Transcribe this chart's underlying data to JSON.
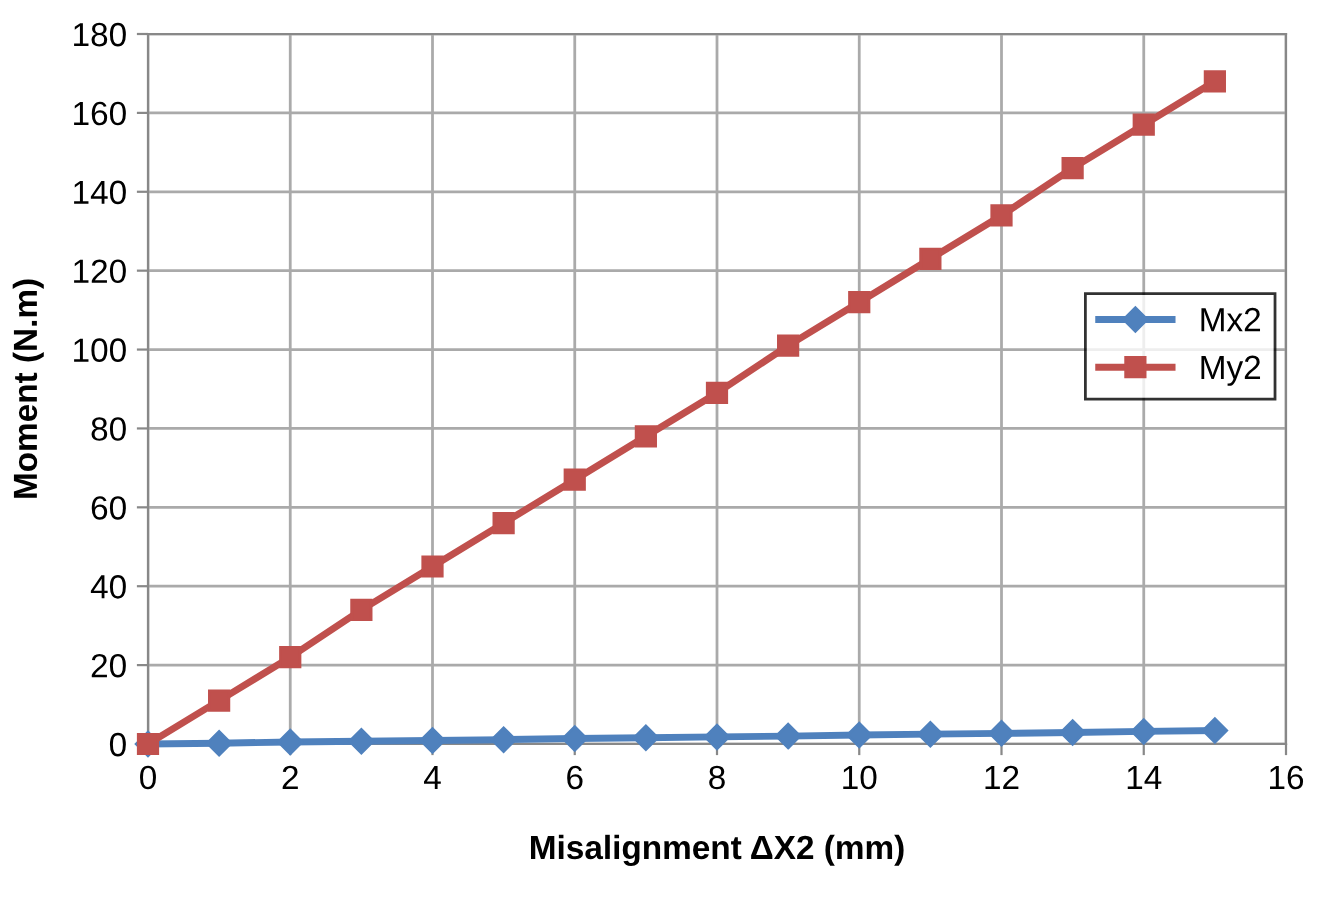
{
  "chart_data": {
    "type": "line",
    "xlabel": "Misalignment ΔX2 (mm)",
    "ylabel": "Moment (N.m)",
    "x": [
      0,
      1,
      2,
      3,
      4,
      5,
      6,
      7,
      8,
      9,
      10,
      11,
      12,
      13,
      14,
      15
    ],
    "series": [
      {
        "name": "Mx2",
        "color": "#4f81bd",
        "marker": "diamond",
        "values": [
          0,
          0.2,
          0.5,
          0.7,
          0.9,
          1.1,
          1.4,
          1.6,
          1.8,
          2.0,
          2.3,
          2.5,
          2.7,
          2.9,
          3.2,
          3.4
        ]
      },
      {
        "name": "My2",
        "color": "#c0504d",
        "marker": "square",
        "values": [
          0,
          11,
          22,
          34,
          45,
          56,
          67,
          78,
          89,
          101,
          112,
          123,
          134,
          146,
          157,
          168
        ]
      }
    ],
    "xlim": [
      0,
      16
    ],
    "xticks": [
      0,
      2,
      4,
      6,
      8,
      10,
      12,
      14,
      16
    ],
    "ylim": [
      0,
      180
    ],
    "yticks": [
      0,
      20,
      40,
      60,
      80,
      100,
      120,
      140,
      160,
      180
    ],
    "grid": true,
    "legend": "right",
    "line_style": "solid"
  }
}
